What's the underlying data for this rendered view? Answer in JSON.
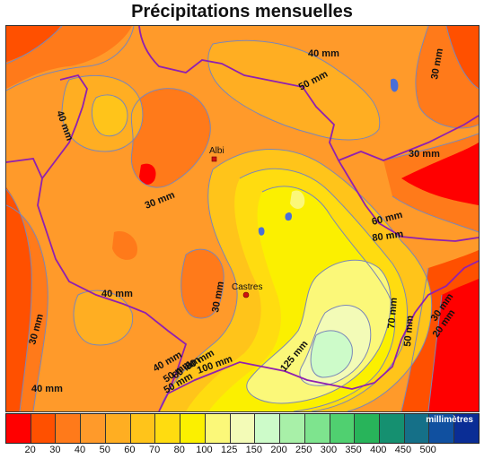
{
  "title": "Précipitations mensuelles",
  "legend": {
    "unit": "millimètres",
    "colors": [
      "#ff0000",
      "#ff5000",
      "#ff7a1a",
      "#ff9a2a",
      "#ffae22",
      "#ffc41a",
      "#ffdc10",
      "#fbf000",
      "#fbf879",
      "#f3fbb7",
      "#cdfbc9",
      "#a8f0a8",
      "#7ee48e",
      "#50d070",
      "#28b45a",
      "#159070",
      "#157088",
      "#1050a0",
      "#0a2d95"
    ],
    "ticks": [
      "20",
      "30",
      "40",
      "50",
      "60",
      "70",
      "80",
      "100",
      "125",
      "150",
      "200",
      "250",
      "300",
      "350",
      "400",
      "450",
      "500"
    ]
  },
  "cities": [
    {
      "name": "Albi"
    },
    {
      "name": "Castres"
    }
  ],
  "contour_labels": [
    "40 mm",
    "50 mm",
    "40 mm",
    "30 mm",
    "30 mm",
    "30 mm",
    "60 mm",
    "80 mm",
    "40 mm",
    "30 mm",
    "30 mm",
    "70 mm",
    "50 mm",
    "30 mm",
    "20 mm",
    "125 mm",
    "40 mm",
    "50 mm",
    "60 mm",
    "80 mm",
    "100 mm",
    "40 mm",
    "50 mm"
  ]
}
